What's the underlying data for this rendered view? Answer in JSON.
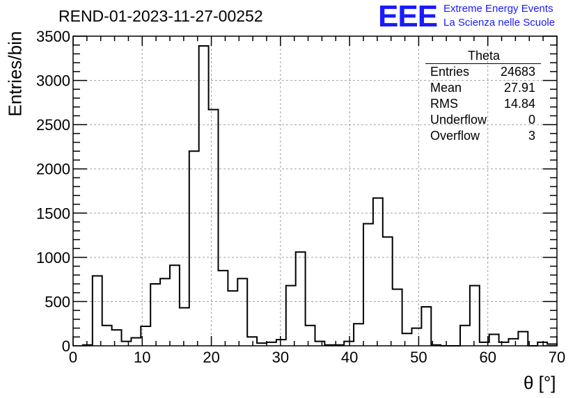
{
  "header": {
    "title": "REND-01-2023-11-27-00252",
    "logo_mark": "EEE",
    "logo_line1": "Extreme Energy Events",
    "logo_line2": "La Scienza nelle Scuole",
    "logo_color": "#1a1aff"
  },
  "stats_box": {
    "title": "Theta",
    "rows": [
      {
        "label": "Entries",
        "value": "24683"
      },
      {
        "label": "Mean",
        "value": "27.91"
      },
      {
        "label": "RMS",
        "value": "14.84"
      },
      {
        "label": "Underflow",
        "value": "0"
      },
      {
        "label": "Overflow",
        "value": "3"
      }
    ]
  },
  "chart_data": {
    "type": "bar",
    "style": "step-histogram",
    "title": "REND-01-2023-11-27-00252",
    "xlabel": "θ [°]",
    "ylabel": "Entries/bin",
    "xlim": [
      0,
      70
    ],
    "ylim": [
      0,
      3500
    ],
    "grid": true,
    "x_ticks": [
      0,
      10,
      20,
      30,
      40,
      50,
      60,
      70
    ],
    "y_ticks": [
      0,
      500,
      1000,
      1500,
      2000,
      2500,
      3000,
      3500
    ],
    "bin_width": 1.4,
    "bin_edges_start": 1.4,
    "values": [
      10,
      790,
      230,
      180,
      50,
      90,
      220,
      700,
      760,
      910,
      430,
      2200,
      3390,
      2670,
      850,
      620,
      760,
      100,
      30,
      40,
      70,
      680,
      1060,
      230,
      50,
      10,
      10,
      50,
      250,
      1380,
      1670,
      1230,
      640,
      140,
      200,
      440,
      10,
      0,
      0,
      230,
      680,
      40,
      130,
      40,
      80,
      160,
      0,
      40,
      20
    ]
  }
}
